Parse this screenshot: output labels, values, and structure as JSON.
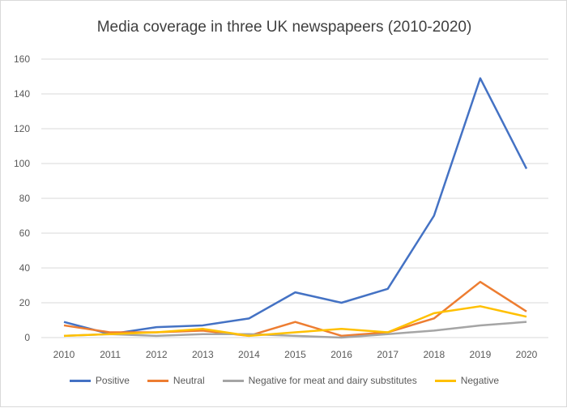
{
  "chart_data": {
    "type": "line",
    "title": "Media coverage in three UK newspapeers (2010-2020)",
    "xlabel": "",
    "ylabel": "",
    "categories": [
      "2010",
      "2011",
      "2012",
      "2013",
      "2014",
      "2015",
      "2016",
      "2017",
      "2018",
      "2019",
      "2020"
    ],
    "ylim": [
      0,
      160
    ],
    "yticks": [
      "0",
      "20",
      "40",
      "60",
      "80",
      "100",
      "120",
      "140",
      "160"
    ],
    "grid": true,
    "legend": "bottom",
    "series": [
      {
        "name": "Positive",
        "color": "#4472c4",
        "values": [
          9,
          2,
          6,
          7,
          11,
          26,
          20,
          28,
          70,
          149,
          97
        ]
      },
      {
        "name": "Neutral",
        "color": "#ed7d31",
        "values": [
          7,
          3,
          3,
          4,
          1,
          9,
          1,
          3,
          11,
          32,
          15
        ]
      },
      {
        "name": "Negative for meat and dairy substitutes",
        "color": "#a5a5a5",
        "values": [
          1,
          2,
          1,
          2,
          2,
          1,
          0,
          2,
          4,
          7,
          9
        ]
      },
      {
        "name": "Negative",
        "color": "#ffc000",
        "values": [
          1,
          2,
          3,
          5,
          1,
          3,
          5,
          3,
          14,
          18,
          12
        ]
      }
    ]
  }
}
